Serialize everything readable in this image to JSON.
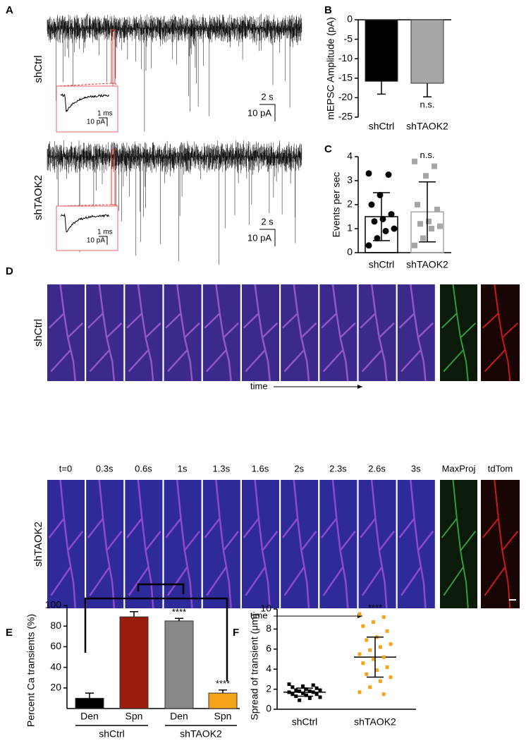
{
  "panel_a": {
    "label": "A",
    "rows": [
      {
        "name": "shCtrl",
        "scale_time": "2 s",
        "scale_current": "10 pA",
        "inset_time": "1 ms",
        "inset_current": "10 pA"
      },
      {
        "name": "shTAOK2",
        "scale_time": "2 s",
        "scale_current": "10 pA",
        "inset_time": "1 ms",
        "inset_current": "10 pA"
      }
    ]
  },
  "panel_d": {
    "label": "D",
    "time_points": [
      "t=0",
      "0.3s",
      "0.6s",
      "1s",
      "1.3s",
      "1.6s",
      "2s",
      "2.3s",
      "2.6s",
      "3s"
    ],
    "channels": [
      "MaxProj",
      "tdTom"
    ],
    "rows": [
      "shCtrl",
      "shTAOK2"
    ],
    "axis_label": "time"
  },
  "chart_data": [
    {
      "type": "bar",
      "label": "B",
      "y_label": "mEPSC Amplitude (pA)",
      "categories": [
        "shCtrl",
        "shTAOK2"
      ],
      "values": [
        -15.8,
        -16.3
      ],
      "errors": [
        3.3,
        3.5
      ],
      "colors": [
        "#000000",
        "#a6a6a6"
      ],
      "value_annotations": [
        null,
        "n.s."
      ],
      "ylim": [
        -25,
        0
      ],
      "yticks": [
        0,
        -5,
        -10,
        -15,
        -20,
        -25
      ]
    },
    {
      "type": "bar_scatter",
      "label": "C",
      "y_label": "Events per sec",
      "categories": [
        "shCtrl",
        "shTAOK2"
      ],
      "values": [
        1.5,
        1.7
      ],
      "errors": [
        1.0,
        1.25
      ],
      "colors": [
        "#000000",
        "#a6a6a6"
      ],
      "markers": [
        "circle",
        "square"
      ],
      "points": [
        [
          3.3,
          3.25,
          2.4,
          2.0,
          1.6,
          1.4,
          1.3,
          1.0,
          0.9,
          0.6,
          0.3
        ],
        [
          3.8,
          3.6,
          3.2,
          2.0,
          1.8,
          1.3,
          1.2,
          1.1,
          1.0,
          0.6,
          0.3
        ]
      ],
      "value_annotations": [
        null,
        "n.s."
      ],
      "ylim": [
        0,
        4
      ],
      "yticks": [
        0,
        1,
        2,
        3,
        4
      ]
    },
    {
      "type": "bar",
      "label": "E",
      "y_label": "Percent Ca transients (%)",
      "categories": [
        "Den",
        "Spn",
        "Den",
        "Spn"
      ],
      "groups": [
        {
          "name": "shCtrl"
        },
        {
          "name": "shTAOK2"
        }
      ],
      "values": [
        10,
        89,
        85,
        15
      ],
      "errors": [
        5,
        5,
        2.5,
        3
      ],
      "colors": [
        "#000000",
        "#9b1b0c",
        "#888888",
        "#f5a31a"
      ],
      "value_annotations": [
        null,
        null,
        "****",
        "****"
      ],
      "ylim": [
        0,
        100
      ],
      "yticks": [
        20,
        40,
        60,
        80,
        100
      ]
    },
    {
      "type": "scatter",
      "label": "F",
      "y_label": "Spread of transient (μm)",
      "categories": [
        "shCtrl",
        "shTAOK2"
      ],
      "values": [
        1.7,
        5.2
      ],
      "errors": [
        0.4,
        2.0
      ],
      "colors": [
        "#000000",
        "#f5a31a"
      ],
      "markers": [
        "square",
        "square"
      ],
      "points": [
        [
          2.5,
          2.4,
          2.3,
          2.2,
          2.1,
          2.0,
          1.9,
          1.9,
          1.8,
          1.8,
          1.7,
          1.7,
          1.6,
          1.5,
          1.5,
          1.4,
          1.3,
          1.2,
          1.1,
          0.9
        ],
        [
          9.5,
          9.2,
          8.7,
          8.3,
          7.8,
          7.2,
          6.9,
          6.5,
          6.2,
          5.9,
          5.5,
          5.2,
          5.0,
          4.6,
          4.2,
          3.9,
          3.5,
          3.2,
          2.8,
          2.2,
          1.7,
          1.5
        ]
      ],
      "value_annotations": [
        null,
        "****"
      ],
      "ylim": [
        0,
        10
      ],
      "yticks": [
        0,
        2,
        4,
        6,
        8,
        10
      ]
    }
  ]
}
